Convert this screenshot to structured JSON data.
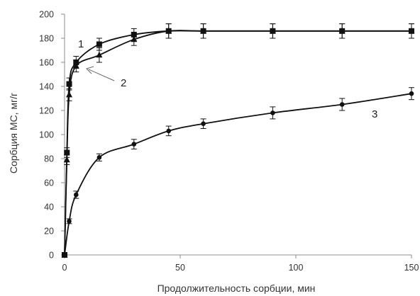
{
  "chart_data": {
    "type": "scatter",
    "title": "",
    "xlabel": "Продолжительность сорбции, мин",
    "ylabel": "Сорбция МС, мг/г",
    "xlim": [
      0,
      150
    ],
    "ylim": [
      0,
      200
    ],
    "xticks": [
      "0",
      "50",
      "100",
      "150"
    ],
    "yticks": [
      "0",
      "20",
      "40",
      "60",
      "80",
      "100",
      "120",
      "140",
      "160",
      "180",
      "200"
    ],
    "grid": false,
    "legend": "none",
    "line_color": "#111111",
    "series": [
      {
        "label": "1",
        "marker": "square",
        "x": [
          0,
          1,
          2,
          5,
          15,
          30,
          45,
          60,
          90,
          120,
          150
        ],
        "y": [
          0,
          85,
          142,
          160,
          175,
          183,
          186,
          186,
          186,
          186,
          186
        ],
        "err": [
          0,
          4,
          5,
          5,
          5,
          5,
          6,
          6,
          6,
          6,
          6
        ]
      },
      {
        "label": "2",
        "marker": "triangle",
        "x": [
          0,
          1,
          2,
          5,
          15,
          30,
          45,
          60,
          90,
          120,
          150
        ],
        "y": [
          0,
          79,
          133,
          157,
          166,
          179,
          186,
          186,
          186,
          186,
          186
        ],
        "err": [
          0,
          4,
          5,
          5,
          6,
          5,
          6,
          6,
          6,
          6,
          6
        ]
      },
      {
        "label": "3",
        "marker": "circle",
        "x": [
          0,
          2,
          5,
          15,
          30,
          45,
          60,
          90,
          120,
          150
        ],
        "y": [
          0,
          28,
          50,
          81,
          92,
          103,
          109,
          118,
          125,
          134
        ],
        "err": [
          0,
          2,
          3,
          3,
          4,
          4,
          4,
          5,
          5,
          5
        ]
      }
    ],
    "annotations": [
      "1",
      "2",
      "3"
    ]
  }
}
